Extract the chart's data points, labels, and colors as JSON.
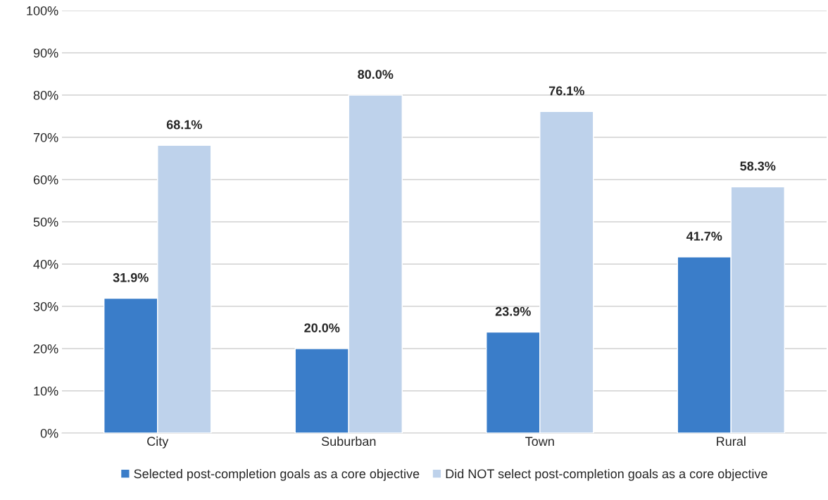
{
  "chart_data": {
    "type": "bar",
    "categories": [
      "City",
      "Suburban",
      "Town",
      "Rural"
    ],
    "series": [
      {
        "name": "Selected post-completion goals as a core objective",
        "color": "#3a7dc9",
        "values": [
          31.9,
          20.0,
          23.9,
          41.7
        ],
        "value_labels": [
          "31.9%",
          "20.0%",
          "23.9%",
          "41.7%"
        ]
      },
      {
        "name": "Did NOT select post-completion goals as a core objective",
        "color": "#bed2eb",
        "values": [
          68.1,
          80.0,
          76.1,
          58.3
        ],
        "value_labels": [
          "68.1%",
          "80.0%",
          "76.1%",
          "58.3%"
        ]
      }
    ],
    "ylim": [
      0,
      100
    ],
    "yticks": [
      {
        "value": 0,
        "label": "0%"
      },
      {
        "value": 10,
        "label": "10%"
      },
      {
        "value": 20,
        "label": "20%"
      },
      {
        "value": 30,
        "label": "30%"
      },
      {
        "value": 40,
        "label": "40%"
      },
      {
        "value": 50,
        "label": "50%"
      },
      {
        "value": 60,
        "label": "60%"
      },
      {
        "value": 70,
        "label": "70%"
      },
      {
        "value": 80,
        "label": "80%"
      },
      {
        "value": 90,
        "label": "90%"
      },
      {
        "value": 100,
        "label": "100%"
      }
    ],
    "grid": "y",
    "legend": "bottom"
  }
}
